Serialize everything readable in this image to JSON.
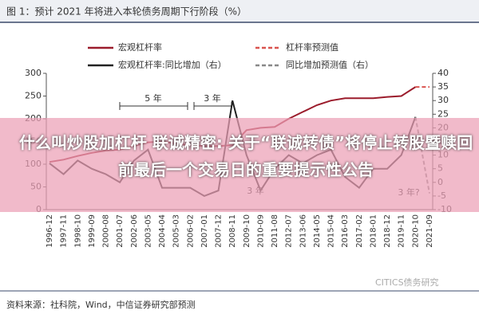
{
  "chart_data": {
    "type": "line",
    "title": "图 1：预计 2021 年将进入本轮债务周期下行阶段（%）",
    "categories": [
      "1996-12",
      "1997-11",
      "1998-10",
      "1999-09",
      "2000-08",
      "2001-07",
      "2002-06",
      "2003-05",
      "2004-04",
      "2005-03",
      "2006-02",
      "2007-01",
      "2007-12",
      "2008-11",
      "2009-10",
      "2010-09",
      "2011-08",
      "2012-07",
      "2013-06",
      "2014-05",
      "2015-04",
      "2016-03",
      "2017-02",
      "2018-01",
      "2018-12",
      "2019-11",
      "2020-10",
      "2021-09"
    ],
    "series": [
      {
        "name": "宏观杠杆率",
        "color": "#9b1c2c",
        "dash": false,
        "values": [
          105,
          110,
          118,
          125,
          130,
          132,
          140,
          148,
          150,
          145,
          142,
          140,
          140,
          142,
          175,
          180,
          182,
          200,
          215,
          230,
          240,
          245,
          245,
          245,
          248,
          250,
          270,
          null
        ]
      },
      {
        "name": "杠杆率预测值",
        "color": "#d9534f",
        "dash": true,
        "values": [
          null,
          null,
          null,
          null,
          null,
          null,
          null,
          null,
          null,
          null,
          null,
          null,
          null,
          null,
          null,
          null,
          null,
          null,
          null,
          null,
          null,
          null,
          null,
          null,
          null,
          null,
          270,
          270
        ]
      },
      {
        "name": "宏观杠杆率:同比增加（右）",
        "color": "#222222",
        "dash": false,
        "axis": "y2",
        "values": [
          7,
          3,
          8,
          5,
          3,
          0,
          8,
          12,
          -2,
          -2,
          -2,
          -5,
          -3,
          30,
          10,
          -3,
          5,
          10,
          7,
          10,
          12,
          2,
          -2,
          5,
          5,
          10,
          24,
          null
        ]
      },
      {
        "name": "同比增加预测值（右）",
        "color": "#888888",
        "dash": true,
        "axis": "y2",
        "values": [
          null,
          null,
          null,
          null,
          null,
          null,
          null,
          null,
          null,
          null,
          null,
          null,
          null,
          null,
          null,
          null,
          null,
          null,
          null,
          null,
          null,
          null,
          null,
          null,
          null,
          null,
          24,
          -4
        ]
      }
    ],
    "ylim": [
      0,
      300
    ],
    "yticks": [
      0,
      50,
      100,
      150,
      200,
      250,
      300
    ],
    "y2lim": [
      -10,
      40
    ],
    "y2ticks": [
      -10,
      -5,
      0,
      5,
      10,
      15,
      20,
      25,
      30,
      35,
      40
    ],
    "grid": false,
    "annotations": [
      "5 年",
      "3 年",
      "3 年",
      "3 年?"
    ],
    "source": "资料来源：社科院，Wind，中信证券研究部预测",
    "watermark": "CITICS债务研究",
    "overlay": "什么叫炒股加杠杆 联诚精密: 关于“联诚转债”将停止转股暨赎回前最后一个交易日的重要提示性公告"
  }
}
